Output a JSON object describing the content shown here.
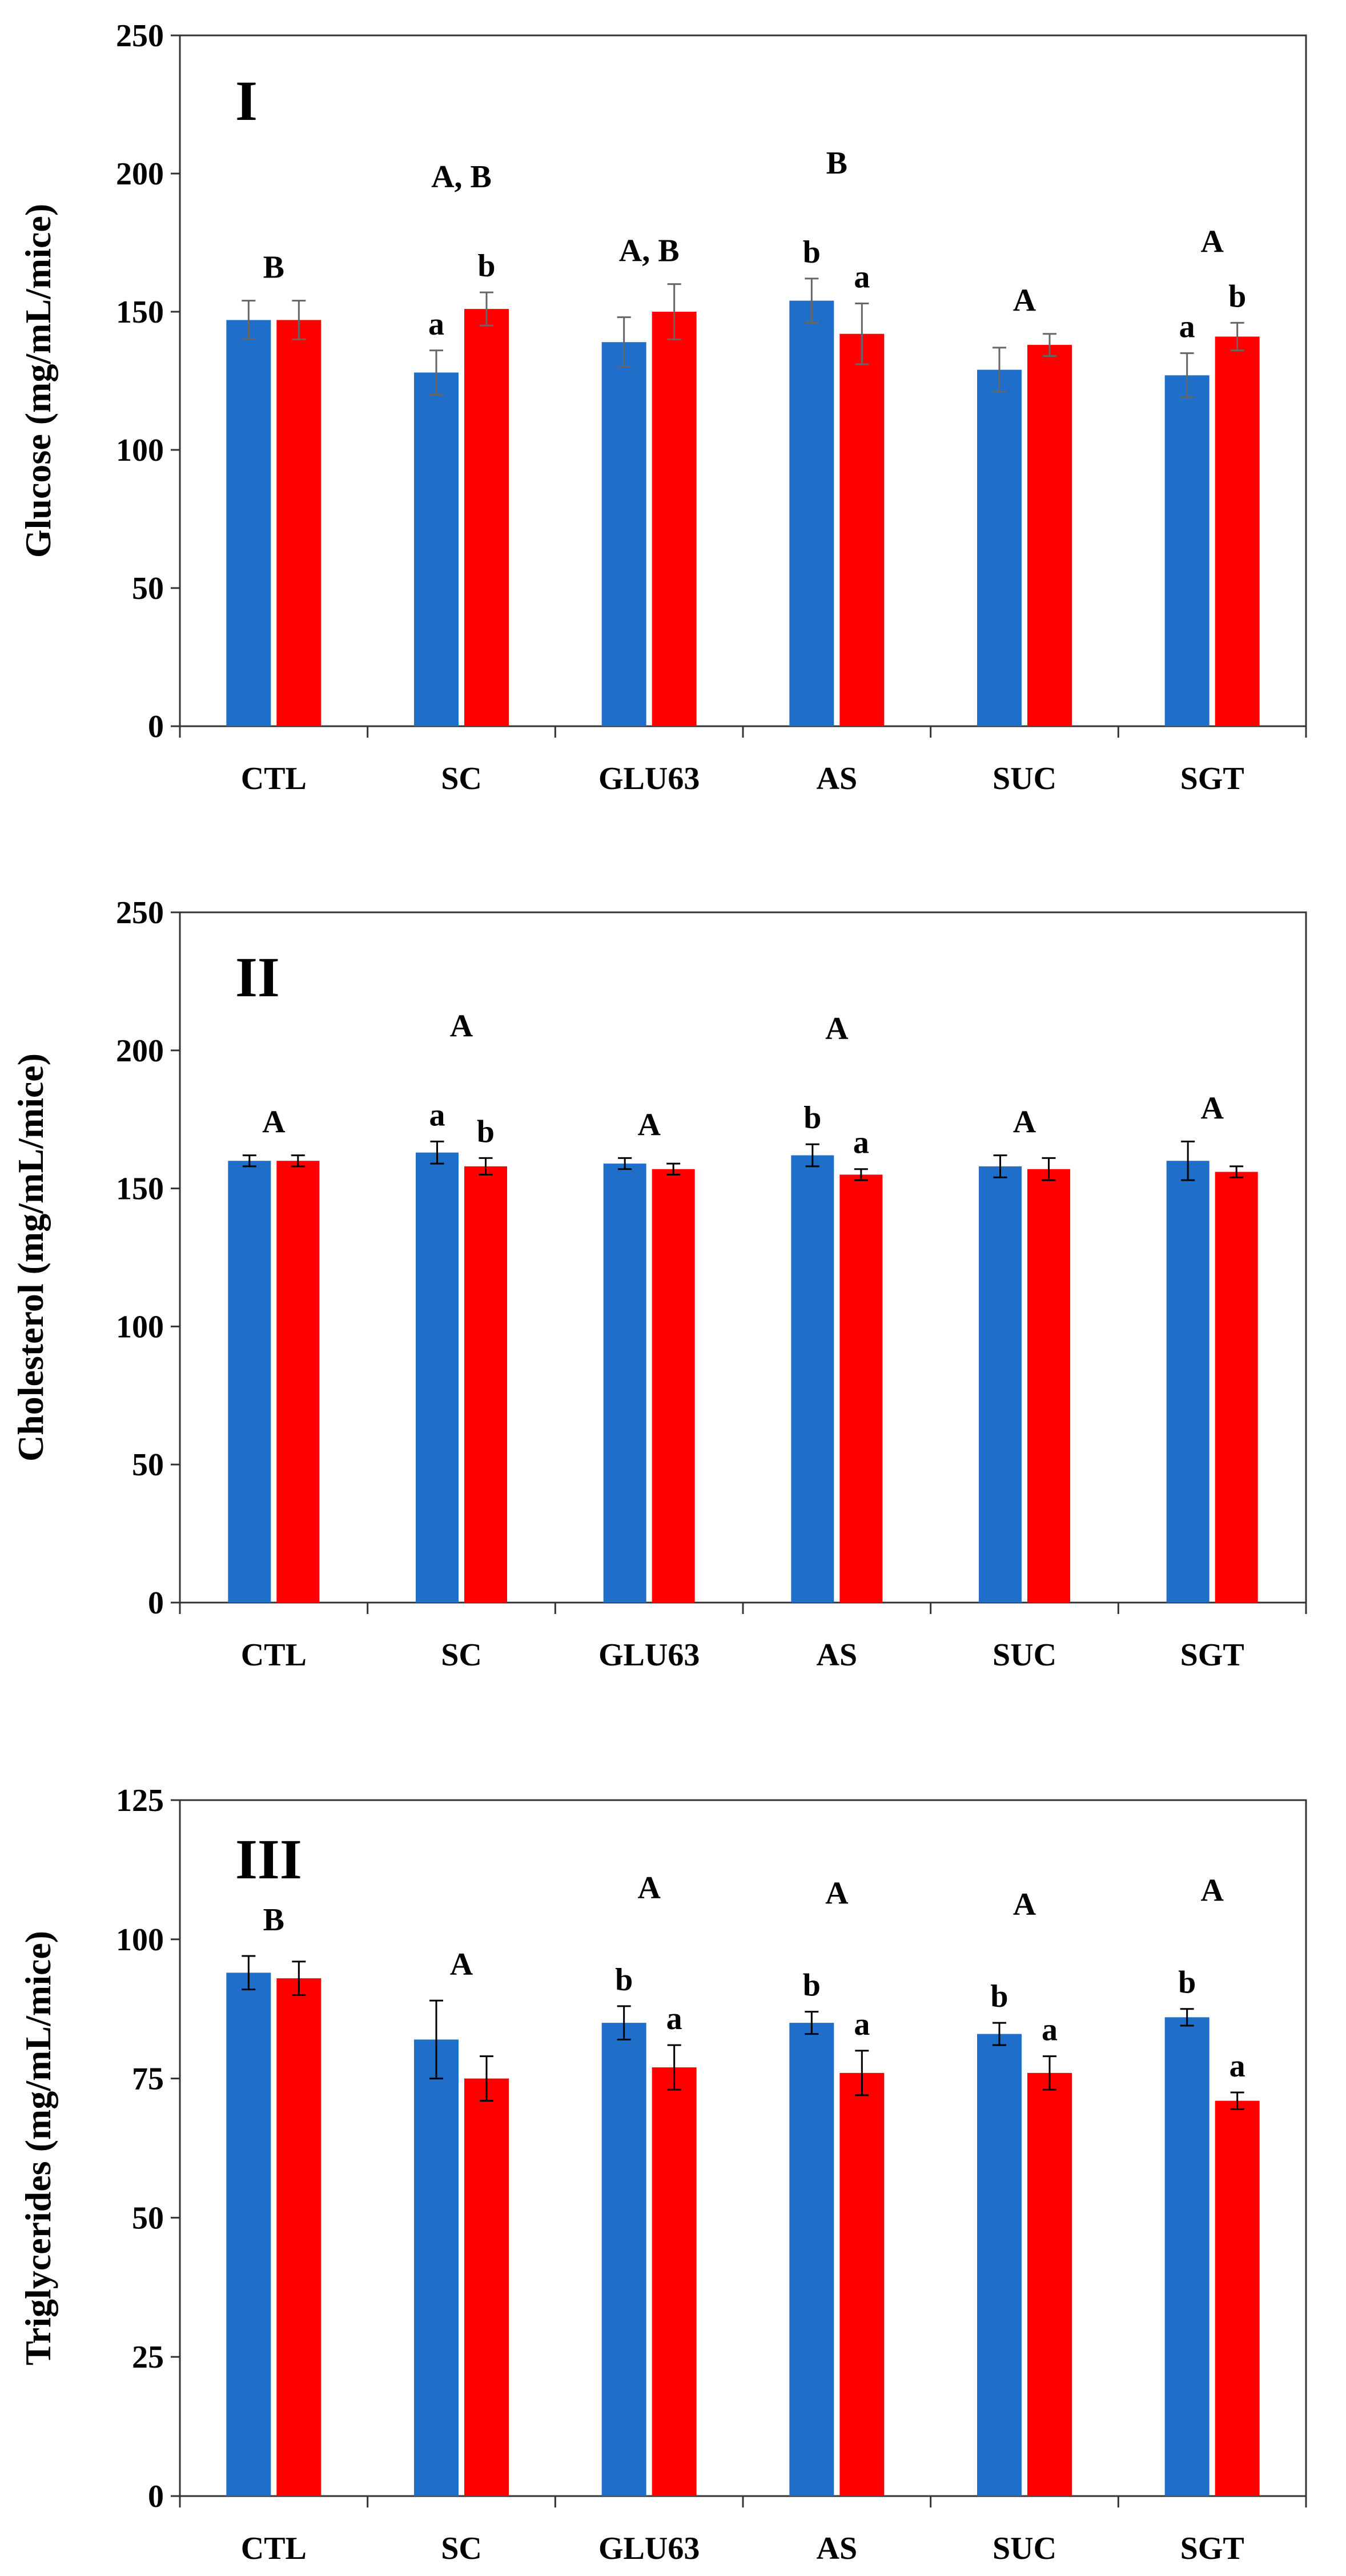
{
  "chart_data": [
    {
      "type": "bar",
      "panel_label": "I",
      "ylabel": "Glucose (mg/mL/mice)",
      "xlabel": "",
      "ylim": [
        0,
        250
      ],
      "yticks": [
        0,
        50,
        100,
        150,
        200,
        250
      ],
      "categories": [
        "CTL",
        "SC",
        "GLU63",
        "AS",
        "SUC",
        "SGT"
      ],
      "colors": [
        "#1f6fc9",
        "#ff0000"
      ],
      "error_color": "#666666",
      "series": [
        {
          "values": [
            147,
            128,
            139,
            154,
            129,
            127
          ],
          "errors": [
            7,
            8,
            9,
            8,
            8,
            8
          ],
          "labels": [
            "",
            "a",
            "",
            "b",
            "",
            "a"
          ]
        },
        {
          "values": [
            147,
            151,
            150,
            142,
            138,
            141
          ],
          "errors": [
            7,
            6,
            10,
            11,
            4,
            5
          ],
          "labels": [
            "",
            "b",
            "",
            "a",
            "",
            "b"
          ]
        }
      ],
      "group_labels": [
        {
          "text": "B",
          "level": "low"
        },
        {
          "text": "A, B",
          "level": "high"
        },
        {
          "text": "A, B",
          "level": "low"
        },
        {
          "text": "B",
          "level": "high"
        },
        {
          "text": "A",
          "level": "low"
        },
        {
          "text": "A",
          "level": "low"
        }
      ]
    },
    {
      "type": "bar",
      "panel_label": "II",
      "ylabel": "Cholesterol (mg/mL/mice)",
      "xlabel": "",
      "ylim": [
        0,
        250
      ],
      "yticks": [
        0,
        50,
        100,
        150,
        200,
        250
      ],
      "categories": [
        "CTL",
        "SC",
        "GLU63",
        "AS",
        "SUC",
        "SGT"
      ],
      "colors": [
        "#1f6fc9",
        "#ff0000"
      ],
      "error_color": "#000000",
      "series": [
        {
          "values": [
            160,
            163,
            159,
            162,
            158,
            160
          ],
          "errors": [
            2,
            4,
            2,
            4,
            4,
            7
          ],
          "labels": [
            "",
            "a",
            "",
            "b",
            "",
            ""
          ]
        },
        {
          "values": [
            160,
            158,
            157,
            155,
            157,
            156
          ],
          "errors": [
            2,
            3,
            2,
            2,
            4,
            2
          ],
          "labels": [
            "",
            "b",
            "",
            "a",
            "",
            ""
          ]
        }
      ],
      "group_labels": [
        {
          "text": "A",
          "level": "low"
        },
        {
          "text": "A",
          "level": "high"
        },
        {
          "text": "A",
          "level": "low"
        },
        {
          "text": "A",
          "level": "high"
        },
        {
          "text": "A",
          "level": "low"
        },
        {
          "text": "A",
          "level": "low"
        }
      ]
    },
    {
      "type": "bar",
      "panel_label": "III",
      "ylabel": "Triglycerides (mg/mL/mice)",
      "xlabel": "",
      "ylim": [
        0,
        125
      ],
      "yticks": [
        0,
        25,
        50,
        75,
        100,
        125
      ],
      "categories": [
        "CTL",
        "SC",
        "GLU63",
        "AS",
        "SUC",
        "SGT"
      ],
      "colors": [
        "#1f6fc9",
        "#ff0000"
      ],
      "error_color": "#000000",
      "series": [
        {
          "values": [
            94,
            82,
            85,
            85,
            83,
            86
          ],
          "errors": [
            3,
            7,
            3,
            2,
            2,
            1.5
          ],
          "labels": [
            "",
            "",
            "b",
            "b",
            "b",
            "b"
          ]
        },
        {
          "values": [
            93,
            75,
            77,
            76,
            76,
            71
          ],
          "errors": [
            3,
            4,
            4,
            4,
            3,
            1.5
          ],
          "labels": [
            "",
            "",
            "a",
            "a",
            "a",
            "a"
          ]
        }
      ],
      "group_labels": [
        {
          "text": "B",
          "level": "low"
        },
        {
          "text": "A",
          "level": "low"
        },
        {
          "text": "A",
          "level": "high"
        },
        {
          "text": "A",
          "level": "high"
        },
        {
          "text": "A",
          "level": "high"
        },
        {
          "text": "A",
          "level": "high"
        }
      ]
    }
  ]
}
